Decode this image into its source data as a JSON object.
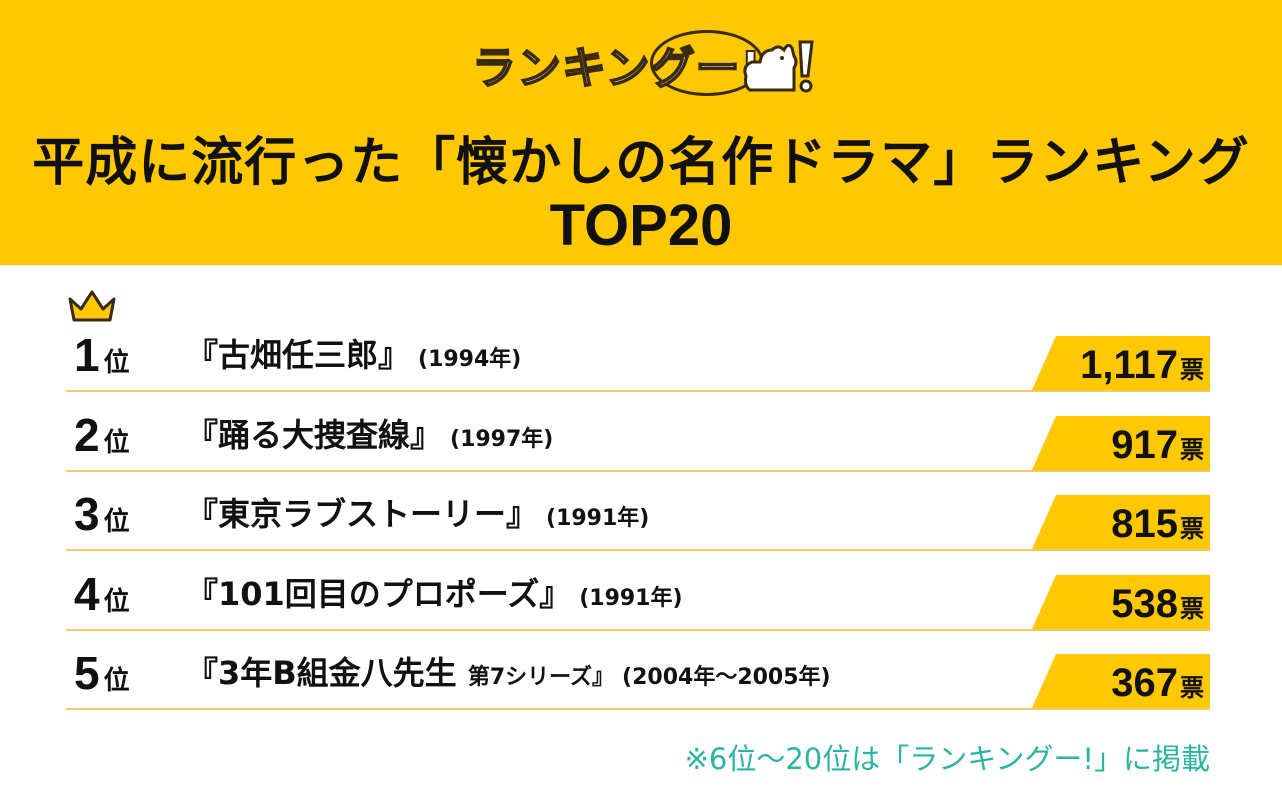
{
  "header": {
    "logo_text": "ランキングー!",
    "title_line1": "平成に流行った「懐かしの名作ドラマ」ランキング",
    "title_line2": "TOP20",
    "background_color": "#ffc800"
  },
  "ranking": [
    {
      "rank": "1",
      "suffix": "位",
      "title": "『古畑任三郎』",
      "subtitle": "",
      "year": "(1994年)",
      "votes": "1,117",
      "unit": "票"
    },
    {
      "rank": "2",
      "suffix": "位",
      "title": "『踊る大捜査線』",
      "subtitle": "",
      "year": "(1997年)",
      "votes": "917",
      "unit": "票"
    },
    {
      "rank": "3",
      "suffix": "位",
      "title": "『東京ラブストーリー』",
      "subtitle": "",
      "year": "(1991年)",
      "votes": "815",
      "unit": "票"
    },
    {
      "rank": "4",
      "suffix": "位",
      "title": "『101回目のプロポーズ』",
      "subtitle": "",
      "year": "(1991年)",
      "votes": "538",
      "unit": "票"
    },
    {
      "rank": "5",
      "suffix": "位",
      "title": "『3年B組金八先生 ",
      "subtitle": "第7シリーズ』",
      "year": "(2004年〜2005年)",
      "votes": "367",
      "unit": "票"
    }
  ],
  "icons": {
    "first_place": "crown-icon",
    "mascot": "thumbs-up-chicken-icon"
  },
  "footnote": "※6位〜20位は「ランキングー!」に掲載",
  "colors": {
    "accent": "#ffc800",
    "divider": "#f2c96d",
    "footnote": "#2bb3a3"
  }
}
